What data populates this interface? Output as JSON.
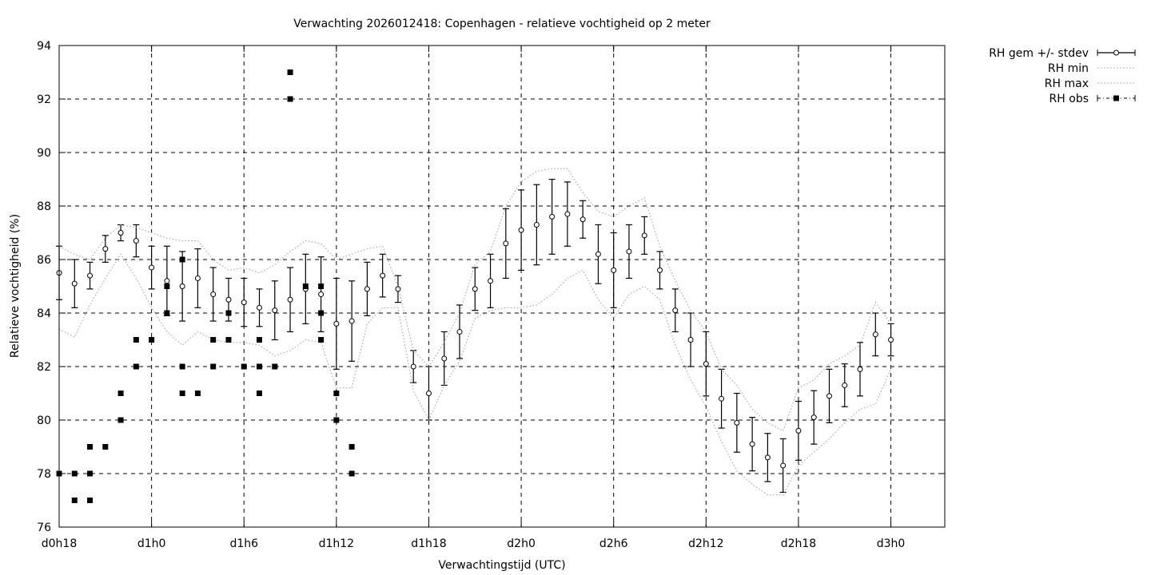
{
  "chart_data": {
    "type": "line",
    "title": "Verwachting 2026012418: Copenhagen - relatieve vochtigheid op 2 meter",
    "xlabel": "Verwachtingstijd (UTC)",
    "ylabel": "Relatieve vochtigheid (%)",
    "xlim": [
      18,
      75.5
    ],
    "ylim": [
      76,
      94
    ],
    "y_ticks": [
      76,
      78,
      80,
      82,
      84,
      86,
      88,
      90,
      92,
      94
    ],
    "x_ticks": [
      {
        "x": 18,
        "label": "d0h18"
      },
      {
        "x": 24,
        "label": "d1h0"
      },
      {
        "x": 30,
        "label": "d1h6"
      },
      {
        "x": 36,
        "label": "d1h12"
      },
      {
        "x": 42,
        "label": "d1h18"
      },
      {
        "x": 48,
        "label": "d2h0"
      },
      {
        "x": 54,
        "label": "d2h6"
      },
      {
        "x": 60,
        "label": "d2h12"
      },
      {
        "x": 66,
        "label": "d2h18"
      },
      {
        "x": 72,
        "label": "d3h0"
      }
    ],
    "grid": true,
    "legend_position": "outside-top-right",
    "series": [
      {
        "name": "RH gem +/- stdev",
        "style": "errorbars",
        "x": [
          18,
          19,
          20,
          21,
          22,
          23,
          24,
          25,
          26,
          27,
          28,
          29,
          30,
          31,
          32,
          33,
          34,
          35,
          36,
          37,
          38,
          39,
          40,
          41,
          42,
          43,
          44,
          45,
          46,
          47,
          48,
          49,
          50,
          51,
          52,
          53,
          54,
          55,
          56,
          57,
          58,
          59,
          60,
          61,
          62,
          63,
          64,
          65,
          66,
          67,
          68,
          69,
          70,
          71,
          72
        ],
        "mean": [
          85.5,
          85.1,
          85.4,
          86.4,
          87.0,
          86.7,
          85.7,
          85.2,
          85.0,
          85.3,
          84.7,
          84.5,
          84.4,
          84.2,
          84.1,
          84.5,
          84.9,
          84.7,
          83.6,
          83.7,
          84.9,
          85.4,
          84.9,
          82.0,
          81.0,
          82.3,
          83.3,
          84.9,
          85.2,
          86.6,
          87.1,
          87.3,
          87.6,
          87.7,
          87.5,
          86.2,
          85.6,
          86.3,
          86.9,
          85.6,
          84.1,
          83.0,
          82.1,
          80.8,
          79.9,
          79.1,
          78.6,
          78.3,
          79.6,
          80.1,
          80.9,
          81.3,
          81.9,
          83.2,
          83.0
        ],
        "stdev": [
          1.0,
          0.9,
          0.5,
          0.5,
          0.3,
          0.6,
          0.8,
          1.3,
          1.3,
          1.1,
          1.0,
          0.8,
          0.9,
          0.7,
          1.1,
          1.2,
          1.3,
          1.4,
          1.7,
          1.5,
          1.0,
          0.8,
          0.5,
          0.6,
          1.0,
          1.0,
          1.0,
          0.8,
          1.0,
          1.3,
          1.5,
          1.5,
          1.4,
          1.2,
          0.7,
          1.1,
          1.4,
          1.0,
          0.7,
          0.7,
          0.8,
          1.0,
          1.2,
          1.1,
          1.1,
          1.0,
          0.9,
          1.0,
          1.1,
          1.0,
          1.0,
          0.8,
          1.0,
          0.8,
          0.6
        ],
        "color": "#000000"
      },
      {
        "name": "RH min",
        "style": "dotted",
        "x": [
          18,
          19,
          20,
          21,
          22,
          23,
          24,
          25,
          26,
          27,
          28,
          29,
          30,
          31,
          32,
          33,
          34,
          35,
          36,
          37,
          38,
          39,
          40,
          41,
          42,
          43,
          44,
          45,
          46,
          47,
          48,
          49,
          50,
          51,
          52,
          53,
          54,
          55,
          56,
          57,
          58,
          59,
          60,
          61,
          62,
          63,
          64,
          65,
          66,
          67,
          68,
          69,
          70,
          71,
          72
        ],
        "y": [
          83.4,
          83.1,
          84.3,
          85.3,
          86.2,
          85.3,
          84.2,
          83.3,
          82.8,
          83.3,
          83.0,
          82.9,
          82.9,
          82.8,
          82.4,
          82.6,
          83.0,
          82.9,
          81.2,
          81.2,
          83.6,
          84.2,
          84.2,
          81.1,
          80.0,
          81.3,
          82.2,
          83.8,
          84.1,
          84.2,
          84.2,
          84.3,
          84.7,
          85.3,
          85.6,
          84.5,
          83.8,
          84.7,
          85.0,
          84.5,
          82.8,
          81.5,
          80.5,
          79.2,
          78.1,
          77.6,
          77.2,
          77.2,
          78.3,
          78.8,
          79.3,
          79.9,
          80.4,
          80.6,
          81.9
        ],
        "color": "#999999"
      },
      {
        "name": "RH max",
        "style": "dotted",
        "x": [
          18,
          19,
          20,
          21,
          22,
          23,
          24,
          25,
          26,
          27,
          28,
          29,
          30,
          31,
          32,
          33,
          34,
          35,
          36,
          37,
          38,
          39,
          40,
          41,
          42,
          43,
          44,
          45,
          46,
          47,
          48,
          49,
          50,
          51,
          52,
          53,
          54,
          55,
          56,
          57,
          58,
          59,
          60,
          61,
          62,
          63,
          64,
          65,
          66,
          67,
          68,
          69,
          70,
          71,
          72
        ],
        "y": [
          86.5,
          86.2,
          86.0,
          86.8,
          87.3,
          87.2,
          87.0,
          86.8,
          86.7,
          86.7,
          86.0,
          85.6,
          85.7,
          85.5,
          85.8,
          86.3,
          86.7,
          86.6,
          86.0,
          86.2,
          86.4,
          86.5,
          85.0,
          82.6,
          82.0,
          82.9,
          84.0,
          85.8,
          86.3,
          88.0,
          88.9,
          89.3,
          89.4,
          89.4,
          88.5,
          87.8,
          87.6,
          88.0,
          88.3,
          86.5,
          85.2,
          84.1,
          83.3,
          81.9,
          81.3,
          80.4,
          79.9,
          79.6,
          81.2,
          81.5,
          82.1,
          82.4,
          82.8,
          84.4,
          83.6
        ],
        "color": "#999999"
      },
      {
        "name": "RH obs",
        "style": "points",
        "x": [
          18,
          19,
          19,
          20,
          20,
          20,
          21,
          22,
          22,
          23,
          23,
          24,
          25,
          25,
          26,
          26,
          26,
          27,
          28,
          28,
          29,
          29,
          30,
          31,
          31,
          31,
          32,
          33,
          33,
          34,
          35,
          35,
          35,
          36,
          36,
          37,
          37
        ],
        "y": [
          78,
          78,
          77,
          79,
          78,
          77,
          79,
          81,
          80,
          83,
          82,
          83,
          85,
          84,
          86,
          82,
          81,
          81,
          83,
          82,
          84,
          83,
          82,
          83,
          82,
          81,
          82,
          93,
          92,
          85,
          85,
          84,
          83,
          81,
          80,
          79,
          78
        ],
        "color": "#000000"
      }
    ]
  }
}
